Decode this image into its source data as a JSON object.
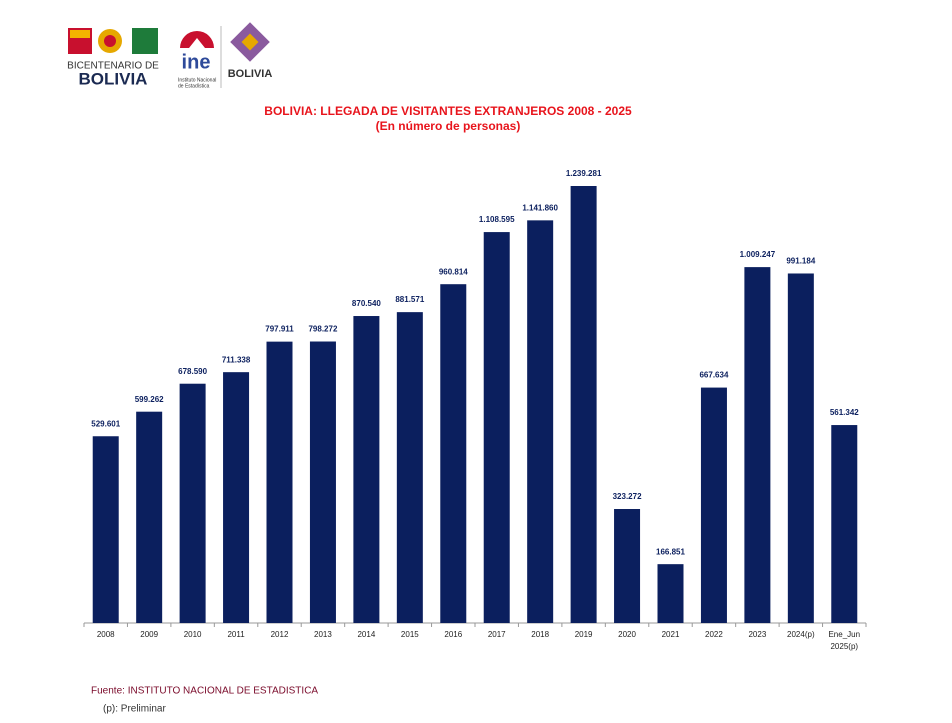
{
  "logos": {
    "bicentenario_line1": "BICENTENARIO DE",
    "bicentenario_line2": "BOLIVIA",
    "ine": "ine",
    "ine_sub1": "Instituto Nacional",
    "ine_sub2": "de Estadística",
    "estado": "BOLIVIA"
  },
  "chart_data": {
    "type": "bar",
    "title": "BOLIVIA: LLEGADA DE VISITANTES EXTRANJEROS 2008 - 2025",
    "subtitle": "(En número de personas)",
    "categories": [
      "2008",
      "2009",
      "2010",
      "2011",
      "2012",
      "2013",
      "2014",
      "2015",
      "2016",
      "2017",
      "2018",
      "2019",
      "2020",
      "2021",
      "2022",
      "2023",
      "2024(p)",
      "Ene_Jun 2025(p)"
    ],
    "values": [
      529601,
      599262,
      678590,
      711338,
      797911,
      798272,
      870540,
      881571,
      960814,
      1108595,
      1141860,
      1239281,
      323272,
      166851,
      667634,
      1009247,
      991184,
      561342
    ],
    "value_labels": [
      "529.601",
      "599.262",
      "678.590",
      "711.338",
      "797.911",
      "798.272",
      "870.540",
      "881.571",
      "960.814",
      "1.108.595",
      "1.141.860",
      "1.239.281",
      "323.272",
      "166.851",
      "667.634",
      "1.009.247",
      "991.184",
      "561.342"
    ],
    "color": "#0b1f5e",
    "source": "Fuente: INSTITUTO NACIONAL DE ESTADISTICA",
    "note": "(p): Preliminar"
  }
}
